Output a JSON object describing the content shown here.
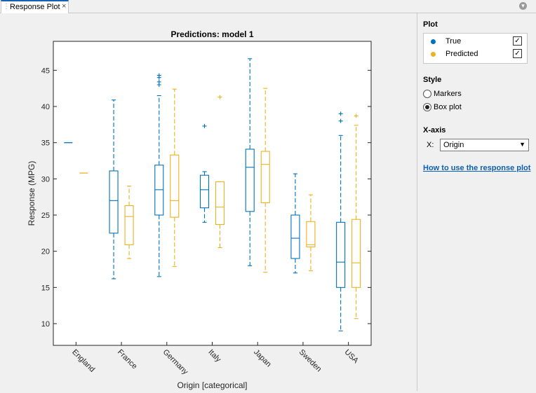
{
  "tab": {
    "title": "Response Plot",
    "close_glyph": "×"
  },
  "panel": {
    "plot_header": "Plot",
    "legend": [
      {
        "label": "True",
        "color": "#0072bd",
        "checked": true
      },
      {
        "label": "Predicted",
        "color": "#edb120",
        "checked": true
      }
    ],
    "style_header": "Style",
    "style_options": [
      {
        "label": "Markers",
        "selected": false
      },
      {
        "label": "Box plot",
        "selected": true
      }
    ],
    "xaxis_header": "X-axis",
    "x_label": "X:",
    "x_value": "Origin",
    "help_link": "How to use the response plot"
  },
  "chart_data": {
    "type": "box",
    "title": "Predictions: model 1",
    "xlabel": "Origin [categorical]",
    "ylabel": "Response (MPG)",
    "ylim": [
      7,
      49
    ],
    "yticks": [
      10,
      15,
      20,
      25,
      30,
      35,
      40,
      45
    ],
    "categories": [
      "England",
      "France",
      "Germany",
      "Italy",
      "Japan",
      "Sweden",
      "USA"
    ],
    "series": [
      {
        "name": "True",
        "color": "#0072bd",
        "boxes": [
          {
            "q1": 35,
            "median": 35,
            "q3": 35,
            "whisker_low": 35,
            "whisker_high": 35,
            "outliers": []
          },
          {
            "q1": 22.5,
            "median": 27,
            "q3": 31.1,
            "whisker_low": 16.2,
            "whisker_high": 40.9,
            "outliers": []
          },
          {
            "q1": 25,
            "median": 28.5,
            "q3": 31.9,
            "whisker_low": 16.5,
            "whisker_high": 41.5,
            "outliers": [
              43,
              43.4,
              44,
              44.3
            ]
          },
          {
            "q1": 26,
            "median": 28.5,
            "q3": 30.5,
            "whisker_low": 24,
            "whisker_high": 31,
            "outliers": [
              37.3
            ]
          },
          {
            "q1": 25.5,
            "median": 31.6,
            "q3": 34.1,
            "whisker_low": 18,
            "whisker_high": 46.6,
            "outliers": []
          },
          {
            "q1": 19,
            "median": 21.8,
            "q3": 25,
            "whisker_low": 17,
            "whisker_high": 30.7,
            "outliers": []
          },
          {
            "q1": 15,
            "median": 18.5,
            "q3": 24,
            "whisker_low": 9,
            "whisker_high": 36,
            "outliers": [
              38,
              39
            ]
          }
        ]
      },
      {
        "name": "Predicted",
        "color": "#edb120",
        "boxes": [
          {
            "q1": 30.8,
            "median": 30.8,
            "q3": 30.8,
            "whisker_low": 30.8,
            "whisker_high": 30.8,
            "outliers": []
          },
          {
            "q1": 20.9,
            "median": 24.8,
            "q3": 26.3,
            "whisker_low": 19,
            "whisker_high": 29,
            "outliers": []
          },
          {
            "q1": 24.7,
            "median": 27,
            "q3": 33.3,
            "whisker_low": 17.9,
            "whisker_high": 42.4,
            "outliers": []
          },
          {
            "q1": 23.7,
            "median": 26.1,
            "q3": 29.6,
            "whisker_low": 20.5,
            "whisker_high": 29.6,
            "outliers": [
              41.3
            ]
          },
          {
            "q1": 26.7,
            "median": 32,
            "q3": 33.8,
            "whisker_low": 17.1,
            "whisker_high": 42.5,
            "outliers": []
          },
          {
            "q1": 20.6,
            "median": 20.9,
            "q3": 24.1,
            "whisker_low": 17.3,
            "whisker_high": 27.8,
            "outliers": []
          },
          {
            "q1": 15,
            "median": 18.4,
            "q3": 24.4,
            "whisker_low": 10.7,
            "whisker_high": 37.4,
            "outliers": [
              38.7
            ]
          }
        ]
      }
    ]
  }
}
